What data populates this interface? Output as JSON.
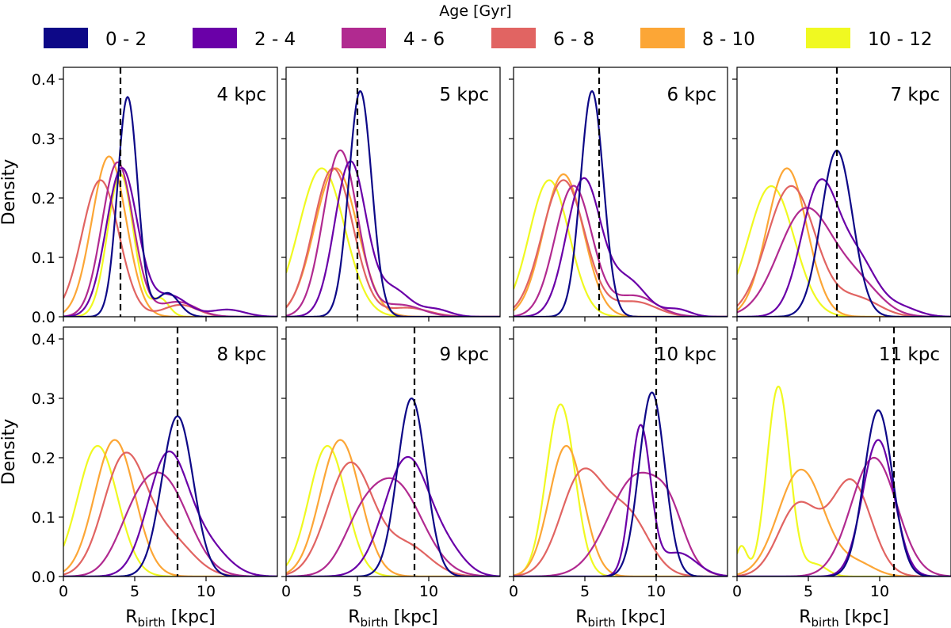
{
  "chart_data": {
    "type": "line",
    "legend": {
      "title": "Age [Gyr]",
      "placement": "top-center",
      "entries": [
        {
          "label": "0 - 2",
          "color": "#0d0887"
        },
        {
          "label": "2 - 4",
          "color": "#6a00a8"
        },
        {
          "label": "4 - 6",
          "color": "#b12a90"
        },
        {
          "label": "6 - 8",
          "color": "#e16462"
        },
        {
          "label": "8 - 10",
          "color": "#fca636"
        },
        {
          "label": "10 - 12",
          "color": "#f0f921"
        }
      ]
    },
    "xlabel_main": "R",
    "xlabel_sub": "birth",
    "xlabel_unit": " [kpc]",
    "ylabel": "Density",
    "xlim": [
      0,
      15
    ],
    "ylim": [
      0,
      0.42
    ],
    "xticks": [
      0,
      5,
      10
    ],
    "yticks": [
      0.0,
      0.1,
      0.2,
      0.3,
      0.4
    ],
    "panels": [
      {
        "label": "4 kpc",
        "vline": 4,
        "series": [
          {
            "name": "0 - 2",
            "peaks": [
              [
                4.5,
                0.37,
                0.7
              ],
              [
                7.3,
                0.04,
                0.8
              ]
            ]
          },
          {
            "name": "2 - 4",
            "peaks": [
              [
                4.1,
                0.25,
                1.1
              ],
              [
                7.5,
                0.035,
                1.2
              ],
              [
                11.5,
                0.012,
                1.2
              ]
            ]
          },
          {
            "name": "4 - 6",
            "peaks": [
              [
                3.8,
                0.26,
                1.1
              ],
              [
                8.0,
                0.025,
                1.3
              ]
            ]
          },
          {
            "name": "6 - 8",
            "peaks": [
              [
                2.6,
                0.23,
                1.3
              ],
              [
                8.2,
                0.02,
                1.2
              ]
            ]
          },
          {
            "name": "8 - 10",
            "peaks": [
              [
                3.2,
                0.27,
                1.2
              ]
            ]
          },
          {
            "name": "10 - 12",
            "peaks": [
              [
                4.0,
                0.24,
                0.9
              ],
              [
                6.8,
                0.03,
                0.6
              ]
            ]
          }
        ]
      },
      {
        "label": "5 kpc",
        "vline": 5,
        "series": [
          {
            "name": "0 - 2",
            "peaks": [
              [
                5.2,
                0.38,
                0.8
              ]
            ]
          },
          {
            "name": "2 - 4",
            "peaks": [
              [
                4.5,
                0.26,
                1.1
              ],
              [
                7.5,
                0.045,
                1.2
              ],
              [
                10.5,
                0.012,
                1.0
              ]
            ]
          },
          {
            "name": "4 - 6",
            "peaks": [
              [
                3.8,
                0.28,
                1.2
              ],
              [
                8.0,
                0.02,
                1.5
              ]
            ]
          },
          {
            "name": "6 - 8",
            "peaks": [
              [
                3.3,
                0.25,
                1.4
              ],
              [
                8.5,
                0.015,
                1.5
              ]
            ]
          },
          {
            "name": "8 - 10",
            "peaks": [
              [
                3.5,
                0.25,
                1.5
              ]
            ]
          },
          {
            "name": "10 - 12",
            "peaks": [
              [
                2.5,
                0.25,
                1.6
              ]
            ]
          }
        ]
      },
      {
        "label": "6 kpc",
        "vline": 6,
        "series": [
          {
            "name": "0 - 2",
            "peaks": [
              [
                5.5,
                0.38,
                0.8
              ]
            ]
          },
          {
            "name": "2 - 4",
            "peaks": [
              [
                4.9,
                0.23,
                1.2
              ],
              [
                8.0,
                0.06,
                1.3
              ],
              [
                11.5,
                0.012,
                0.9
              ]
            ]
          },
          {
            "name": "4 - 6",
            "peaks": [
              [
                4.2,
                0.22,
                1.3
              ],
              [
                8.5,
                0.035,
                1.5
              ]
            ]
          },
          {
            "name": "6 - 8",
            "peaks": [
              [
                3.5,
                0.23,
                1.5
              ],
              [
                8.5,
                0.025,
                1.5
              ]
            ]
          },
          {
            "name": "8 - 10",
            "peaks": [
              [
                3.5,
                0.24,
                1.4
              ]
            ]
          },
          {
            "name": "10 - 12",
            "peaks": [
              [
                2.5,
                0.23,
                1.4
              ]
            ]
          }
        ]
      },
      {
        "label": "7 kpc",
        "vline": 7,
        "series": [
          {
            "name": "0 - 2",
            "peaks": [
              [
                7.0,
                0.28,
                1.1
              ]
            ]
          },
          {
            "name": "2 - 4",
            "peaks": [
              [
                5.8,
                0.22,
                1.3
              ],
              [
                8.5,
                0.09,
                1.3
              ],
              [
                11.5,
                0.015,
                1.2
              ]
            ]
          },
          {
            "name": "4 - 6",
            "peaks": [
              [
                4.8,
                0.18,
                1.9
              ],
              [
                8.5,
                0.05,
                1.6
              ]
            ]
          },
          {
            "name": "6 - 8",
            "peaks": [
              [
                3.8,
                0.22,
                1.7
              ],
              [
                8.5,
                0.03,
                1.5
              ]
            ]
          },
          {
            "name": "8 - 10",
            "peaks": [
              [
                3.5,
                0.25,
                1.4
              ]
            ]
          },
          {
            "name": "10 - 12",
            "peaks": [
              [
                2.4,
                0.22,
                1.6
              ]
            ]
          }
        ]
      },
      {
        "label": "8 kpc",
        "vline": 8,
        "series": [
          {
            "name": "0 - 2",
            "peaks": [
              [
                8.0,
                0.27,
                1.1
              ]
            ]
          },
          {
            "name": "2 - 4",
            "peaks": [
              [
                7.3,
                0.2,
                1.4
              ],
              [
                10.0,
                0.05,
                1.5
              ]
            ]
          },
          {
            "name": "4 - 6",
            "peaks": [
              [
                7.0,
                0.16,
                1.8
              ],
              [
                4.8,
                0.05,
                1.3
              ]
            ]
          },
          {
            "name": "6 - 8",
            "peaks": [
              [
                4.3,
                0.2,
                1.5
              ],
              [
                7.5,
                0.06,
                1.6
              ]
            ]
          },
          {
            "name": "8 - 10",
            "peaks": [
              [
                3.6,
                0.23,
                1.4
              ]
            ]
          },
          {
            "name": "10 - 12",
            "peaks": [
              [
                2.4,
                0.22,
                1.4
              ]
            ]
          }
        ]
      },
      {
        "label": "9 kpc",
        "vline": 9,
        "series": [
          {
            "name": "0 - 2",
            "peaks": [
              [
                8.8,
                0.3,
                1.0
              ]
            ]
          },
          {
            "name": "2 - 4",
            "peaks": [
              [
                8.5,
                0.2,
                1.6
              ],
              [
                11.5,
                0.03,
                1.2
              ]
            ]
          },
          {
            "name": "4 - 6",
            "peaks": [
              [
                7.5,
                0.16,
                2.0
              ],
              [
                5.0,
                0.04,
                1.2
              ]
            ]
          },
          {
            "name": "6 - 8",
            "peaks": [
              [
                4.5,
                0.19,
                1.6
              ],
              [
                8.5,
                0.05,
                1.6
              ]
            ]
          },
          {
            "name": "8 - 10",
            "peaks": [
              [
                3.8,
                0.23,
                1.4
              ]
            ]
          },
          {
            "name": "10 - 12",
            "peaks": [
              [
                2.9,
                0.22,
                1.3
              ]
            ]
          }
        ]
      },
      {
        "label": "10 kpc",
        "vline": 10,
        "series": [
          {
            "name": "0 - 2",
            "peaks": [
              [
                9.7,
                0.31,
                0.9
              ]
            ]
          },
          {
            "name": "2 - 4",
            "peaks": [
              [
                8.9,
                0.25,
                0.7
              ],
              [
                11.5,
                0.04,
                1.3
              ]
            ]
          },
          {
            "name": "4 - 6",
            "peaks": [
              [
                8.7,
                0.17,
                2.0
              ],
              [
                11.0,
                0.05,
                1.0
              ]
            ]
          },
          {
            "name": "6 - 8",
            "peaks": [
              [
                4.8,
                0.17,
                1.5
              ],
              [
                8.0,
                0.1,
                1.5
              ]
            ]
          },
          {
            "name": "8 - 10",
            "peaks": [
              [
                3.7,
                0.22,
                1.2
              ]
            ]
          },
          {
            "name": "10 - 12",
            "peaks": [
              [
                3.3,
                0.29,
                1.0
              ]
            ]
          }
        ]
      },
      {
        "label": "11 kpc",
        "vline": 11,
        "series": [
          {
            "name": "0 - 2",
            "peaks": [
              [
                9.9,
                0.28,
                1.0
              ]
            ]
          },
          {
            "name": "2 - 4",
            "peaks": [
              [
                9.9,
                0.23,
                1.1
              ]
            ]
          },
          {
            "name": "4 - 6",
            "peaks": [
              [
                9.6,
                0.2,
                1.6
              ]
            ]
          },
          {
            "name": "6 - 8",
            "peaks": [
              [
                8.0,
                0.16,
                1.4
              ],
              [
                4.3,
                0.12,
                1.4
              ]
            ]
          },
          {
            "name": "8 - 10",
            "peaks": [
              [
                4.5,
                0.18,
                1.6
              ],
              [
                8.5,
                0.02,
                1.2
              ]
            ]
          },
          {
            "name": "10 - 12",
            "peaks": [
              [
                2.9,
                0.32,
                0.8
              ],
              [
                0.3,
                0.05,
                0.4
              ],
              [
                5.5,
                0.02,
                0.8
              ]
            ]
          }
        ]
      }
    ]
  }
}
